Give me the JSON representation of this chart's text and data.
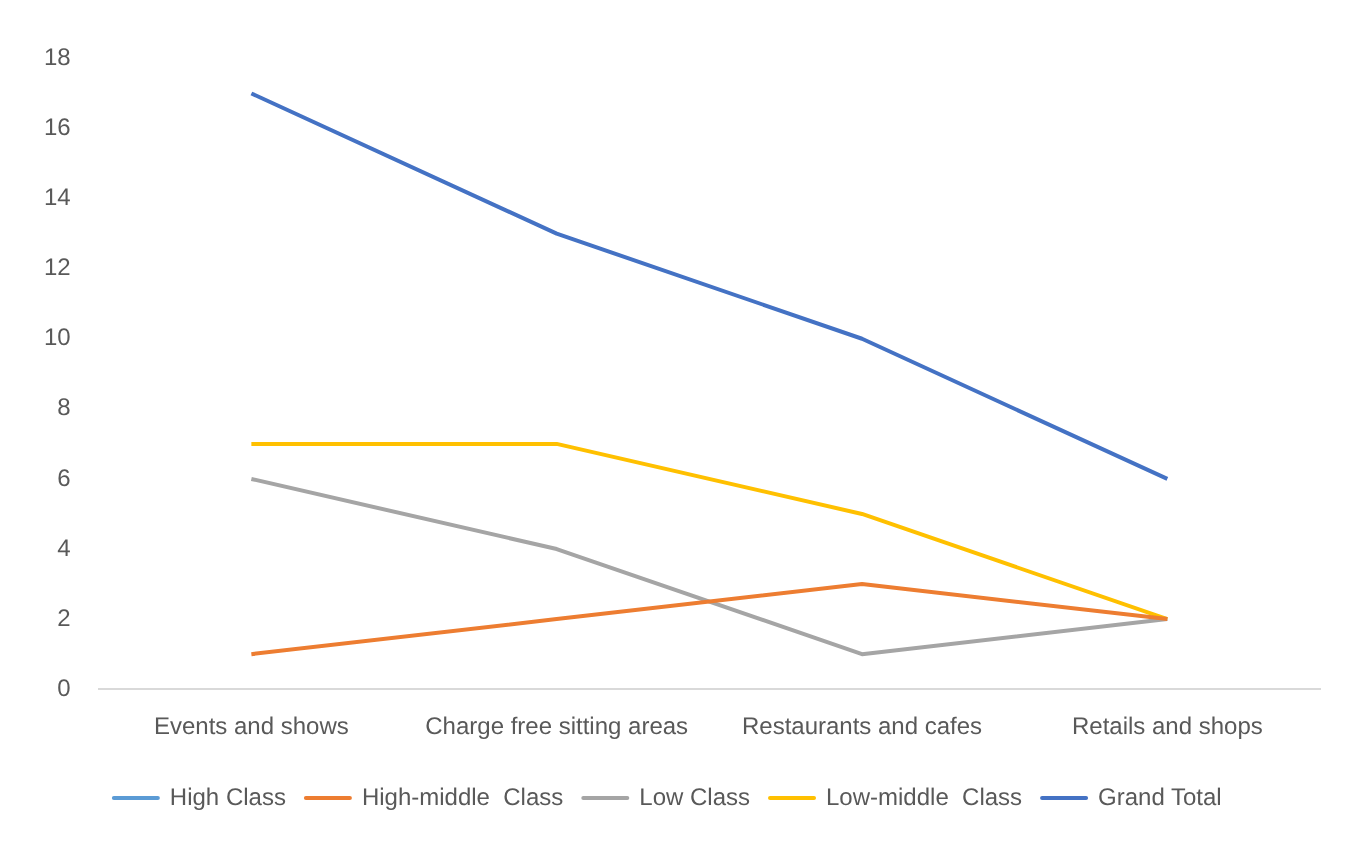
{
  "chart_data": {
    "type": "line",
    "categories": [
      "Events and shows",
      "Charge free sitting areas",
      "Restaurants and cafes",
      "Retails and shops"
    ],
    "series": [
      {
        "name": "High Class",
        "color": "#5b9bd5",
        "values": [
          null,
          null,
          null,
          null
        ]
      },
      {
        "name": "High-middle  Class",
        "color": "#ed7d31",
        "values": [
          1,
          2,
          3,
          2
        ]
      },
      {
        "name": "Low Class",
        "color": "#a5a5a5",
        "values": [
          6,
          4,
          1,
          2
        ]
      },
      {
        "name": "Low-middle  Class",
        "color": "#ffc000",
        "values": [
          7,
          7,
          5,
          2
        ]
      },
      {
        "name": "Grand Total",
        "color": "#4472c4",
        "values": [
          17,
          13,
          10,
          6
        ]
      }
    ],
    "ylim": [
      0,
      18
    ],
    "yticks": [
      0,
      2,
      4,
      6,
      8,
      10,
      12,
      14,
      16,
      18
    ],
    "grid": false,
    "legend": "bottom",
    "marker": "none",
    "line_style": "solid"
  }
}
